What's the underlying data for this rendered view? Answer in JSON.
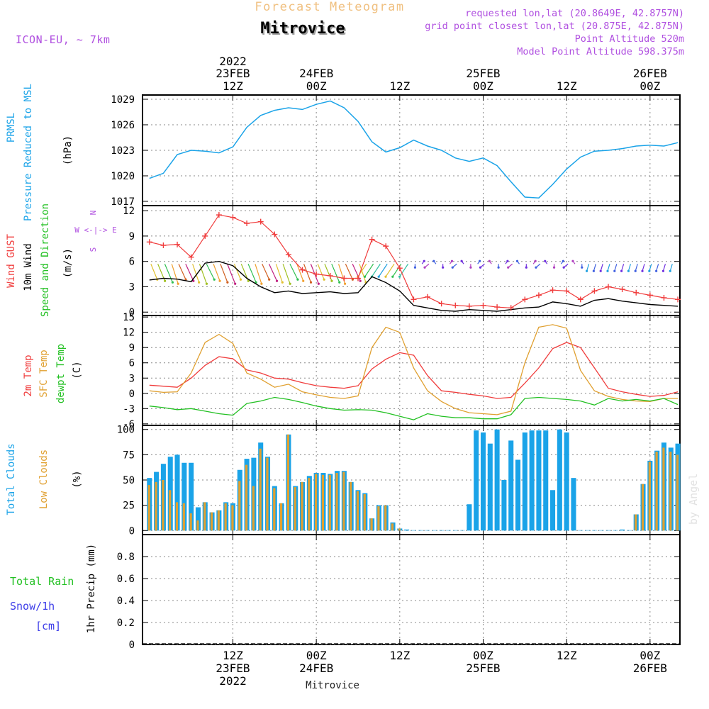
{
  "header": {
    "super_title": "Forecast Meteogram",
    "location": "Mitrovice",
    "model": "ICON-EU, ~ 7km",
    "requested": "requested lon,lat (20.8649E, 42.8757N)",
    "gridpoint": "grid point closest lon,lat (20.875E, 42.875N)",
    "point_alt": "Point Altitude 520m",
    "model_alt": "Model Point Altitude 598.375m"
  },
  "footer": {
    "location": "Mitrovice",
    "watermark": "by Angel"
  },
  "colors": {
    "pressure": "#1aa3e8",
    "gust": "#f03c3c",
    "wind": "#000000",
    "dir": "#22c022",
    "temp2m": "#f03c3c",
    "sfc": "#e0a030",
    "dew": "#22c022",
    "total_clouds": "#1aa3e8",
    "low_clouds": "#e0a030",
    "rain": "#22c022",
    "snow": "#3c3ce8",
    "purple": "#b050e0",
    "title_orange": "#f0c080"
  },
  "time_axis": {
    "top": [
      {
        "l1": "2022",
        "l2": "23FEB",
        "l3": "12Z"
      },
      {
        "l1": "",
        "l2": "24FEB",
        "l3": "00Z"
      },
      {
        "l1": "",
        "l2": "",
        "l3": "12Z"
      },
      {
        "l1": "",
        "l2": "25FEB",
        "l3": "00Z"
      },
      {
        "l1": "",
        "l2": "",
        "l3": "12Z"
      },
      {
        "l1": "",
        "l2": "26FEB",
        "l3": "00Z"
      }
    ],
    "bottom": [
      {
        "l1": "12Z",
        "l2": "23FEB",
        "l3": "2022"
      },
      {
        "l1": "00Z",
        "l2": "24FEB",
        "l3": ""
      },
      {
        "l1": "12Z",
        "l2": "",
        "l3": ""
      },
      {
        "l1": "00Z",
        "l2": "25FEB",
        "l3": ""
      },
      {
        "l1": "12Z",
        "l2": "",
        "l3": ""
      },
      {
        "l1": "00Z",
        "l2": "26FEB",
        "l3": ""
      }
    ]
  },
  "chart_data": [
    {
      "type": "line",
      "panel": "pressure",
      "labels": [
        "PRMSL",
        "Pressure Reduced to MSL",
        "(hPa)"
      ],
      "yticks": [
        1017,
        1020,
        1023,
        1026,
        1029
      ],
      "ylim": [
        1016.5,
        1029.5
      ],
      "series": [
        {
          "name": "PRMSL",
          "x": [
            0,
            2,
            4,
            6,
            8,
            10,
            12,
            14,
            16,
            18,
            20,
            22,
            24,
            26,
            28,
            30,
            32,
            34,
            36,
            38,
            40,
            42,
            44,
            46,
            48,
            50,
            52,
            54,
            56,
            58,
            60,
            62,
            64,
            66,
            68,
            70,
            72,
            74,
            76
          ],
          "y": [
            1019.7,
            1020.3,
            1022.5,
            1023.0,
            1022.9,
            1022.7,
            1023.4,
            1025.7,
            1027.1,
            1027.7,
            1028.0,
            1027.8,
            1028.4,
            1028.8,
            1028.0,
            1026.4,
            1024.0,
            1022.8,
            1023.3,
            1024.2,
            1023.5,
            1023.0,
            1022.1,
            1021.7,
            1022.1,
            1021.2,
            1019.3,
            1017.5,
            1017.4,
            1019.0,
            1020.8,
            1022.2,
            1022.9,
            1023.0,
            1023.2,
            1023.5,
            1023.6,
            1023.5,
            1023.9
          ]
        }
      ]
    },
    {
      "type": "line",
      "panel": "wind",
      "labels": [
        "Wind GUST",
        "10m Wind",
        "Speed and Direction",
        "(m/s)"
      ],
      "compass": [
        "N",
        "W <-|-> E",
        "S"
      ],
      "yticks": [
        0,
        3,
        6,
        9,
        12
      ],
      "ylim": [
        -0.4,
        12.6
      ],
      "series": [
        {
          "name": "Wind GUST",
          "x": [
            0,
            2,
            4,
            6,
            8,
            10,
            12,
            14,
            16,
            18,
            20,
            22,
            24,
            26,
            28,
            30,
            32,
            34,
            36,
            38,
            40,
            42,
            44,
            46,
            48,
            50,
            52,
            54,
            56,
            58,
            60,
            62,
            64,
            66,
            68,
            70,
            72,
            74,
            76
          ],
          "y": [
            8.3,
            7.9,
            8.0,
            6.5,
            9.0,
            11.5,
            11.2,
            10.5,
            10.7,
            9.2,
            6.8,
            5.0,
            4.5,
            4.3,
            4.0,
            4.0,
            8.6,
            7.8,
            5.2,
            1.5,
            1.8,
            1.0,
            0.8,
            0.7,
            0.8,
            0.6,
            0.5,
            1.5,
            2.0,
            2.6,
            2.5,
            1.5,
            2.5,
            3.0,
            2.7,
            2.3,
            2.0,
            1.7,
            1.5
          ]
        },
        {
          "name": "10m Wind",
          "x": [
            0,
            2,
            4,
            6,
            8,
            10,
            12,
            14,
            16,
            18,
            20,
            22,
            24,
            26,
            28,
            30,
            32,
            34,
            36,
            38,
            40,
            42,
            44,
            46,
            48,
            50,
            52,
            54,
            56,
            58,
            60,
            62,
            64,
            66,
            68,
            70,
            72,
            74,
            76
          ],
          "y": [
            3.8,
            4.0,
            3.9,
            3.6,
            5.8,
            6.0,
            5.5,
            4.0,
            3.0,
            2.3,
            2.5,
            2.2,
            2.3,
            2.4,
            2.2,
            2.3,
            4.2,
            3.5,
            2.5,
            0.8,
            0.5,
            0.2,
            0.1,
            0.3,
            0.2,
            0.1,
            0.3,
            0.5,
            0.6,
            1.2,
            1.0,
            0.7,
            1.4,
            1.6,
            1.3,
            1.1,
            0.9,
            0.8,
            0.7
          ]
        }
      ]
    },
    {
      "type": "line",
      "panel": "temperature",
      "labels": [
        "2m Temp",
        "SFC Temp",
        "dewpt Temp",
        "(C)"
      ],
      "yticks": [
        -6,
        -3,
        0,
        3,
        6,
        9,
        12,
        15
      ],
      "ylim": [
        -6.3,
        15.3
      ],
      "series": [
        {
          "name": "2m Temp",
          "x": [
            0,
            2,
            4,
            6,
            8,
            10,
            12,
            14,
            16,
            18,
            20,
            22,
            24,
            26,
            28,
            30,
            32,
            34,
            36,
            38,
            40,
            42,
            44,
            46,
            48,
            50,
            52,
            54,
            56,
            58,
            60,
            62,
            64,
            66,
            68,
            70,
            72,
            74,
            76
          ],
          "y": [
            1.6,
            1.4,
            1.2,
            3.0,
            5.5,
            7.2,
            6.8,
            4.6,
            4.0,
            3.0,
            2.8,
            2.1,
            1.5,
            1.2,
            1.0,
            1.5,
            4.8,
            6.7,
            8.0,
            7.5,
            3.5,
            0.5,
            0.2,
            -0.2,
            -0.5,
            -1.0,
            -0.8,
            2.0,
            5.0,
            8.8,
            10.0,
            9.0,
            5.0,
            1.0,
            0.3,
            -0.2,
            -0.6,
            -0.4,
            0.3
          ]
        },
        {
          "name": "SFC Temp",
          "x": [
            0,
            2,
            4,
            6,
            8,
            10,
            12,
            14,
            16,
            18,
            20,
            22,
            24,
            26,
            28,
            30,
            32,
            34,
            36,
            38,
            40,
            42,
            44,
            46,
            48,
            50,
            52,
            54,
            56,
            58,
            60,
            62,
            64,
            66,
            68,
            70,
            72,
            74,
            76
          ],
          "y": [
            0.5,
            0.2,
            0.3,
            4.0,
            10.0,
            11.6,
            9.8,
            4.0,
            2.8,
            1.2,
            1.8,
            0.3,
            -0.3,
            -0.8,
            -1.0,
            -0.5,
            9.0,
            13.0,
            12.0,
            5.0,
            0.5,
            -1.6,
            -3.0,
            -3.8,
            -4.0,
            -4.2,
            -3.5,
            6.0,
            13.0,
            13.5,
            12.8,
            4.5,
            0.5,
            -0.6,
            -1.2,
            -1.5,
            -1.6,
            -1.0,
            -1.0
          ]
        },
        {
          "name": "dewpt Temp",
          "x": [
            0,
            2,
            4,
            6,
            8,
            10,
            12,
            14,
            16,
            18,
            20,
            22,
            24,
            26,
            28,
            30,
            32,
            34,
            36,
            38,
            40,
            42,
            44,
            46,
            48,
            50,
            52,
            54,
            56,
            58,
            60,
            62,
            64,
            66,
            68,
            70,
            72,
            74,
            76
          ],
          "y": [
            -2.5,
            -2.8,
            -3.2,
            -3.0,
            -3.5,
            -4.0,
            -4.3,
            -2.0,
            -1.5,
            -0.8,
            -1.2,
            -1.8,
            -2.5,
            -3.0,
            -3.3,
            -3.2,
            -3.3,
            -3.8,
            -4.5,
            -5.2,
            -4.0,
            -4.5,
            -4.8,
            -4.8,
            -5.0,
            -5.0,
            -4.2,
            -1.0,
            -0.8,
            -1.0,
            -1.2,
            -1.5,
            -2.3,
            -1.0,
            -1.5,
            -1.2,
            -1.5,
            -1.0,
            -2.2
          ]
        }
      ]
    },
    {
      "type": "bar",
      "panel": "clouds",
      "labels": [
        "Total Clouds",
        "Low Clouds",
        "(%)"
      ],
      "yticks": [
        0,
        25,
        50,
        75,
        100
      ],
      "ylim": [
        -4,
        104
      ],
      "series": [
        {
          "name": "Total Clouds",
          "x": [
            0,
            1,
            2,
            3,
            4,
            5,
            6,
            7,
            8,
            9,
            10,
            11,
            12,
            13,
            14,
            15,
            16,
            17,
            18,
            19,
            20,
            21,
            22,
            23,
            24,
            25,
            26,
            27,
            28,
            29,
            30,
            31,
            32,
            33,
            34,
            35,
            36,
            37,
            38,
            39,
            40,
            41,
            42,
            43,
            44,
            45,
            46,
            47,
            48,
            49,
            50,
            51,
            52,
            53,
            54,
            55,
            56,
            57,
            58,
            59,
            60,
            61,
            62,
            63,
            64,
            65,
            66,
            67,
            68,
            69,
            70,
            71,
            72,
            73,
            74,
            75,
            76
          ],
          "y": [
            52,
            58,
            66,
            73,
            75,
            67,
            67,
            23,
            28,
            18,
            20,
            28,
            27,
            60,
            71,
            72,
            87,
            73,
            44,
            27,
            95,
            44,
            48,
            54,
            57,
            57,
            56,
            59,
            59,
            48,
            40,
            37,
            12,
            25,
            25,
            8,
            2,
            1,
            0,
            0,
            0,
            0,
            0,
            0,
            0,
            0,
            26,
            99,
            97,
            86,
            100,
            50,
            89,
            70,
            97,
            99,
            99,
            99,
            40,
            100,
            97,
            52,
            0,
            0,
            0,
            0,
            0,
            0,
            1,
            0,
            16,
            46,
            69,
            79,
            87,
            82,
            86
          ]
        },
        {
          "name": "Low Clouds",
          "x": [
            0,
            1,
            2,
            3,
            4,
            5,
            6,
            7,
            8,
            9,
            10,
            11,
            12,
            13,
            14,
            15,
            16,
            17,
            18,
            19,
            20,
            21,
            22,
            23,
            24,
            25,
            26,
            27,
            28,
            29,
            30,
            31,
            32,
            33,
            34,
            35,
            36,
            37,
            38,
            39,
            40,
            41,
            42,
            43,
            44,
            45,
            46,
            47,
            48,
            49,
            50,
            51,
            52,
            53,
            54,
            55,
            56,
            57,
            58,
            59,
            60,
            61,
            62,
            63,
            64,
            65,
            66,
            67,
            68,
            69,
            70,
            71,
            72,
            73,
            74,
            75,
            76
          ],
          "y": [
            45,
            48,
            50,
            40,
            28,
            27,
            17,
            10,
            28,
            18,
            20,
            27,
            25,
            49,
            65,
            44,
            81,
            72,
            42,
            27,
            95,
            43,
            48,
            52,
            56,
            55,
            55,
            57,
            58,
            48,
            39,
            36,
            12,
            24,
            25,
            7,
            2,
            0,
            0,
            0,
            0,
            0,
            0,
            0,
            0,
            0,
            0,
            0,
            0,
            0,
            0,
            0,
            0,
            0,
            0,
            0,
            0,
            0,
            0,
            0,
            0,
            0,
            0,
            0,
            0,
            0,
            0,
            0,
            0,
            0,
            16,
            46,
            68,
            78,
            82,
            78,
            75
          ]
        }
      ]
    },
    {
      "type": "line",
      "panel": "precip",
      "labels": [
        "Total  Rain",
        "Snow/1h",
        "[cm]",
        "1hr Precip (mm)"
      ],
      "yticks": [
        0,
        0.2,
        0.4,
        0.6,
        0.8
      ],
      "ytick_labels": [
        "0",
        "0.2",
        "0.4",
        "0.6",
        "0.8"
      ],
      "ylim": [
        0,
        1.0
      ],
      "series": [
        {
          "name": "Total  Rain",
          "x": [
            0,
            76
          ],
          "y": [
            0,
            0
          ]
        },
        {
          "name": "Snow/1h",
          "x": [
            0,
            76
          ],
          "y": [
            0,
            0
          ]
        }
      ]
    }
  ]
}
